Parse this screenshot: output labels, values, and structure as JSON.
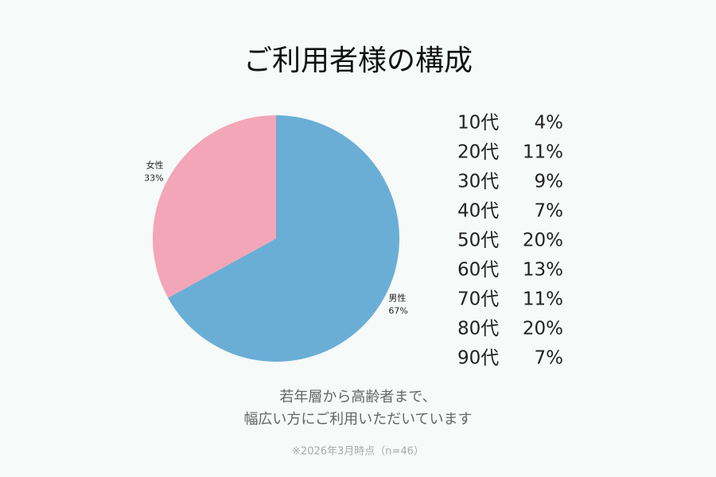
{
  "chart_data": {
    "type": "pie",
    "title": "ご利用者様の構成",
    "categories": [
      "男性",
      "女性"
    ],
    "values": [
      67,
      33
    ],
    "value_labels": [
      "67%",
      "33%"
    ],
    "colors": [
      "#6aaed6",
      "#f3a6b7"
    ]
  },
  "age_table": {
    "rows": [
      [
        "10代",
        "4%"
      ],
      [
        "20代",
        "11%"
      ],
      [
        "30代",
        "9%"
      ],
      [
        "40代",
        "7%"
      ],
      [
        "50代",
        "20%"
      ],
      [
        "60代",
        "13%"
      ],
      [
        "70代",
        "11%"
      ],
      [
        "80代",
        "20%"
      ],
      [
        "90代",
        "7%"
      ]
    ]
  },
  "caption": [
    "若年層から高齢者まで、",
    "幅広い方にご利用いただいています"
  ],
  "footnote": "※2026年3月時点（n=46）"
}
